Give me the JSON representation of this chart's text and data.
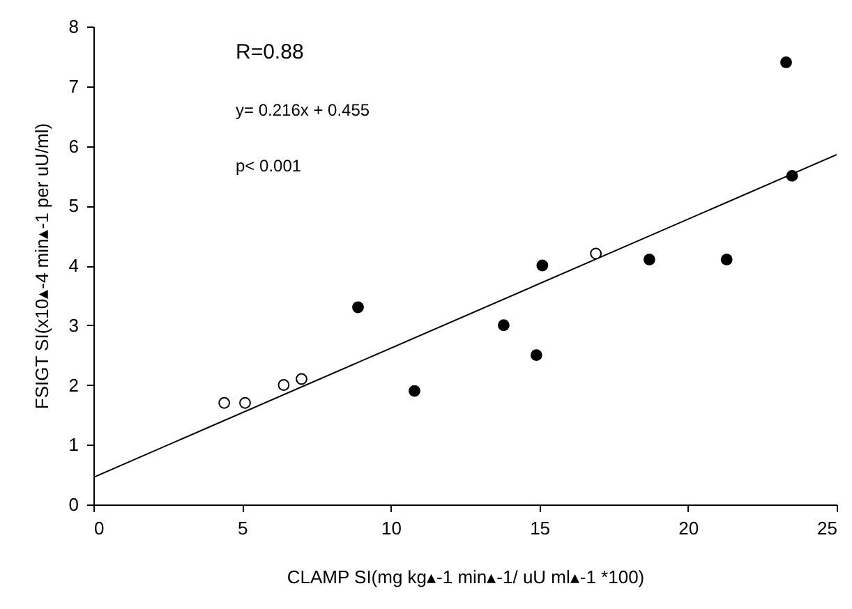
{
  "chart_data": {
    "type": "scatter",
    "xlabel": "CLAMP SI(mg kg▴-1 min▴-1/ uU ml▴-1 *100)",
    "ylabel": "FSIGT SI(x10▴-4 min▴-1 per uU/ml)",
    "xlim": [
      0,
      25
    ],
    "xticks": [
      0,
      5,
      10,
      15,
      20,
      25
    ],
    "ylim": [
      0,
      8
    ],
    "yticks": [
      0,
      1,
      2,
      3,
      4,
      5,
      6,
      7,
      8
    ],
    "grid": false,
    "marker": "circle",
    "annotations": [
      "R=0.88",
      "y= 0.216x + 0.455",
      "p< 0.001"
    ],
    "series": [
      {
        "type": "line",
        "color": "#000000",
        "x": [
          0,
          25
        ],
        "values": [
          0.455,
          5.855
        ],
        "line_style": "solid",
        "marker": "none"
      },
      {
        "color": "#000000",
        "x": [
          8.9,
          10.8,
          13.8,
          14.9,
          15.1,
          18.7,
          21.3,
          23.3,
          23.5
        ],
        "values": [
          3.3,
          1.9,
          3.0,
          2.5,
          4.0,
          4.1,
          4.1,
          7.4,
          5.5
        ]
      },
      {
        "color": "#ffffff",
        "x": [
          4.4,
          5.1,
          6.4,
          7.0,
          16.9
        ],
        "values": [
          1.7,
          1.7,
          2.0,
          2.1,
          4.2
        ]
      }
    ]
  }
}
